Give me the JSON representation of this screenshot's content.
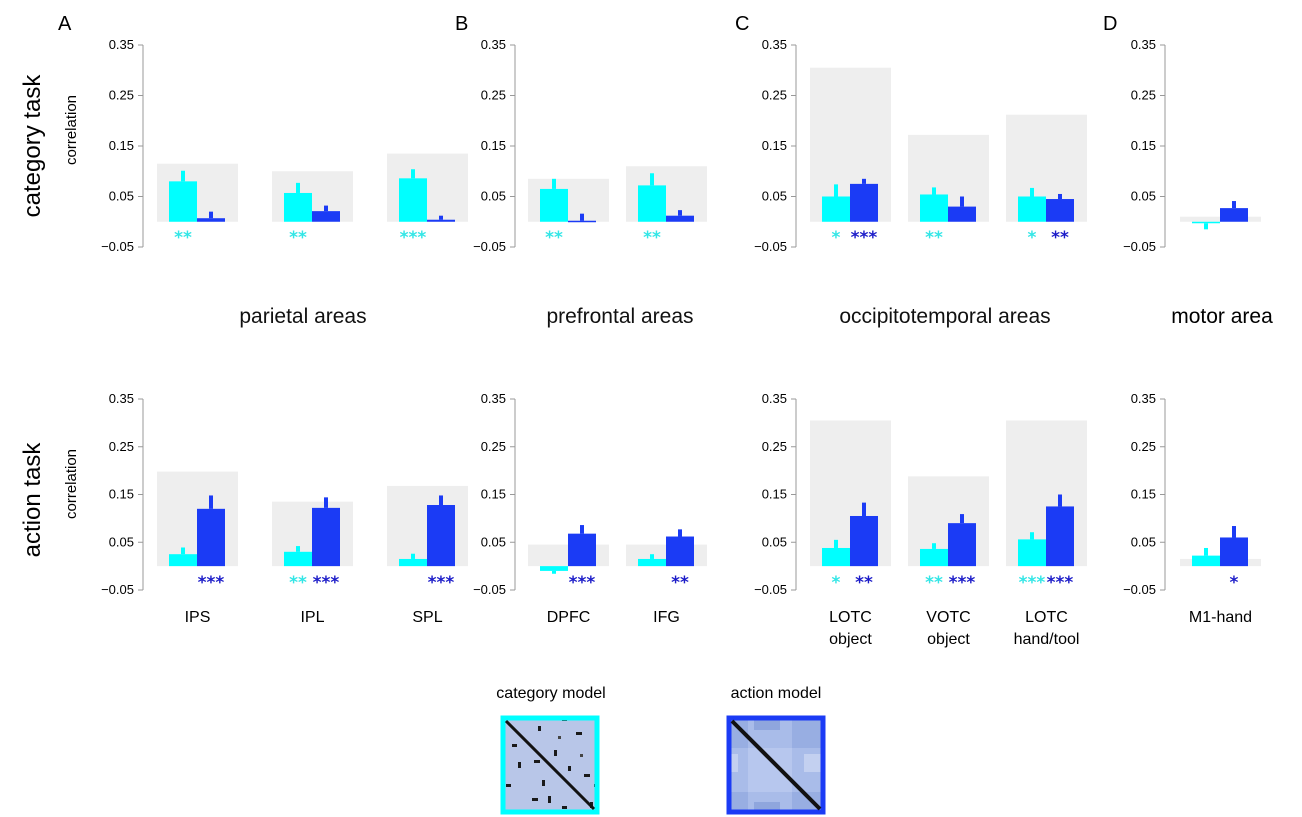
{
  "row_labels": {
    "top": "category task",
    "bottom": "action task"
  },
  "ylabel": "correlation",
  "yticks": [
    "0.35",
    "0.25",
    "0.15",
    "0.05",
    "−0.05"
  ],
  "group_titles": [
    "parietal areas",
    "prefrontal areas",
    "occipitotemporal areas",
    "motor area"
  ],
  "legend": {
    "category": "category model",
    "action": "action model"
  },
  "colors": {
    "category": "#00FFFF",
    "action": "#1B3BF5",
    "ceiling": "#EEEEEE",
    "category_star": "#33E6E6",
    "action_star": "#1C1CC8"
  },
  "chart_data": [
    {
      "type": "bar",
      "panel": "A",
      "task": "category task",
      "ylim": [
        -0.05,
        0.35
      ],
      "categories": [
        "IPS",
        "IPL",
        "SPL"
      ],
      "noise_ceiling": [
        0.115,
        0.1,
        0.135
      ],
      "series": [
        {
          "values": [
            0.08,
            0.057,
            0.086
          ],
          "errors": [
            0.021,
            0.02,
            0.018
          ],
          "stars": [
            "**",
            "**",
            "***"
          ]
        },
        {
          "values": [
            0.007,
            0.021,
            0.004
          ],
          "errors": [
            0.013,
            0.011,
            0.008
          ],
          "stars": [
            "",
            "",
            ""
          ]
        }
      ]
    },
    {
      "type": "bar",
      "panel": "B",
      "task": "category task",
      "ylim": [
        -0.05,
        0.35
      ],
      "categories": [
        "DPFC",
        "IFG"
      ],
      "noise_ceiling": [
        0.085,
        0.11
      ],
      "series": [
        {
          "values": [
            0.065,
            0.072
          ],
          "errors": [
            0.02,
            0.024
          ],
          "stars": [
            "**",
            "**"
          ]
        },
        {
          "values": [
            0.002,
            0.012
          ],
          "errors": [
            0.014,
            0.011
          ],
          "stars": [
            "",
            ""
          ]
        }
      ]
    },
    {
      "type": "bar",
      "panel": "C",
      "task": "category task",
      "ylim": [
        -0.05,
        0.35
      ],
      "categories": [
        "LOTC object",
        "VOTC object",
        "LOTC hand/tool"
      ],
      "noise_ceiling": [
        0.305,
        0.172,
        0.212
      ],
      "series": [
        {
          "values": [
            0.05,
            0.054,
            0.05
          ],
          "errors": [
            0.024,
            0.014,
            0.017
          ],
          "stars": [
            "*",
            "**",
            "*"
          ]
        },
        {
          "values": [
            0.075,
            0.03,
            0.045
          ],
          "errors": [
            0.01,
            0.02,
            0.01
          ],
          "stars": [
            "***",
            "",
            "**"
          ]
        }
      ]
    },
    {
      "type": "bar",
      "panel": "D",
      "task": "category task",
      "ylim": [
        -0.05,
        0.35
      ],
      "categories": [
        "M1-hand"
      ],
      "noise_ceiling": [
        0.01
      ],
      "series": [
        {
          "values": [
            -0.003
          ],
          "errors": [
            0.012
          ],
          "stars": [
            ""
          ]
        },
        {
          "values": [
            0.027
          ],
          "errors": [
            0.014
          ],
          "stars": [
            ""
          ]
        }
      ]
    },
    {
      "type": "bar",
      "panel": "A",
      "task": "action task",
      "ylim": [
        -0.05,
        0.35
      ],
      "categories": [
        "IPS",
        "IPL",
        "SPL"
      ],
      "noise_ceiling": [
        0.198,
        0.135,
        0.168
      ],
      "series": [
        {
          "values": [
            0.025,
            0.03,
            0.015
          ],
          "errors": [
            0.014,
            0.012,
            0.011
          ],
          "stars": [
            "",
            "**",
            ""
          ]
        },
        {
          "values": [
            0.12,
            0.122,
            0.128
          ],
          "errors": [
            0.028,
            0.022,
            0.02
          ],
          "stars": [
            "***",
            "***",
            "***"
          ]
        }
      ]
    },
    {
      "type": "bar",
      "panel": "B",
      "task": "action task",
      "ylim": [
        -0.05,
        0.35
      ],
      "categories": [
        "DPFC",
        "IFG"
      ],
      "noise_ceiling": [
        0.045,
        0.045
      ],
      "series": [
        {
          "values": [
            -0.01,
            0.015
          ],
          "errors": [
            0.006,
            0.01
          ],
          "stars": [
            "",
            ""
          ]
        },
        {
          "values": [
            0.068,
            0.062
          ],
          "errors": [
            0.018,
            0.015
          ],
          "stars": [
            "***",
            "**"
          ]
        }
      ]
    },
    {
      "type": "bar",
      "panel": "C",
      "task": "action task",
      "ylim": [
        -0.05,
        0.35
      ],
      "categories": [
        "LOTC object",
        "VOTC object",
        "LOTC hand/tool"
      ],
      "noise_ceiling": [
        0.305,
        0.188,
        0.305
      ],
      "series": [
        {
          "values": [
            0.038,
            0.036,
            0.056
          ],
          "errors": [
            0.017,
            0.012,
            0.015
          ],
          "stars": [
            "*",
            "**",
            "***"
          ]
        },
        {
          "values": [
            0.105,
            0.09,
            0.125
          ],
          "errors": [
            0.028,
            0.019,
            0.025
          ],
          "stars": [
            "**",
            "***",
            "***"
          ]
        }
      ]
    },
    {
      "type": "bar",
      "panel": "D",
      "task": "action task",
      "ylim": [
        -0.05,
        0.35
      ],
      "categories": [
        "M1-hand"
      ],
      "noise_ceiling": [
        0.015
      ],
      "series": [
        {
          "values": [
            0.022
          ],
          "errors": [
            0.016
          ],
          "stars": [
            ""
          ]
        },
        {
          "values": [
            0.06
          ],
          "errors": [
            0.024
          ],
          "stars": [
            "*"
          ]
        }
      ]
    }
  ]
}
